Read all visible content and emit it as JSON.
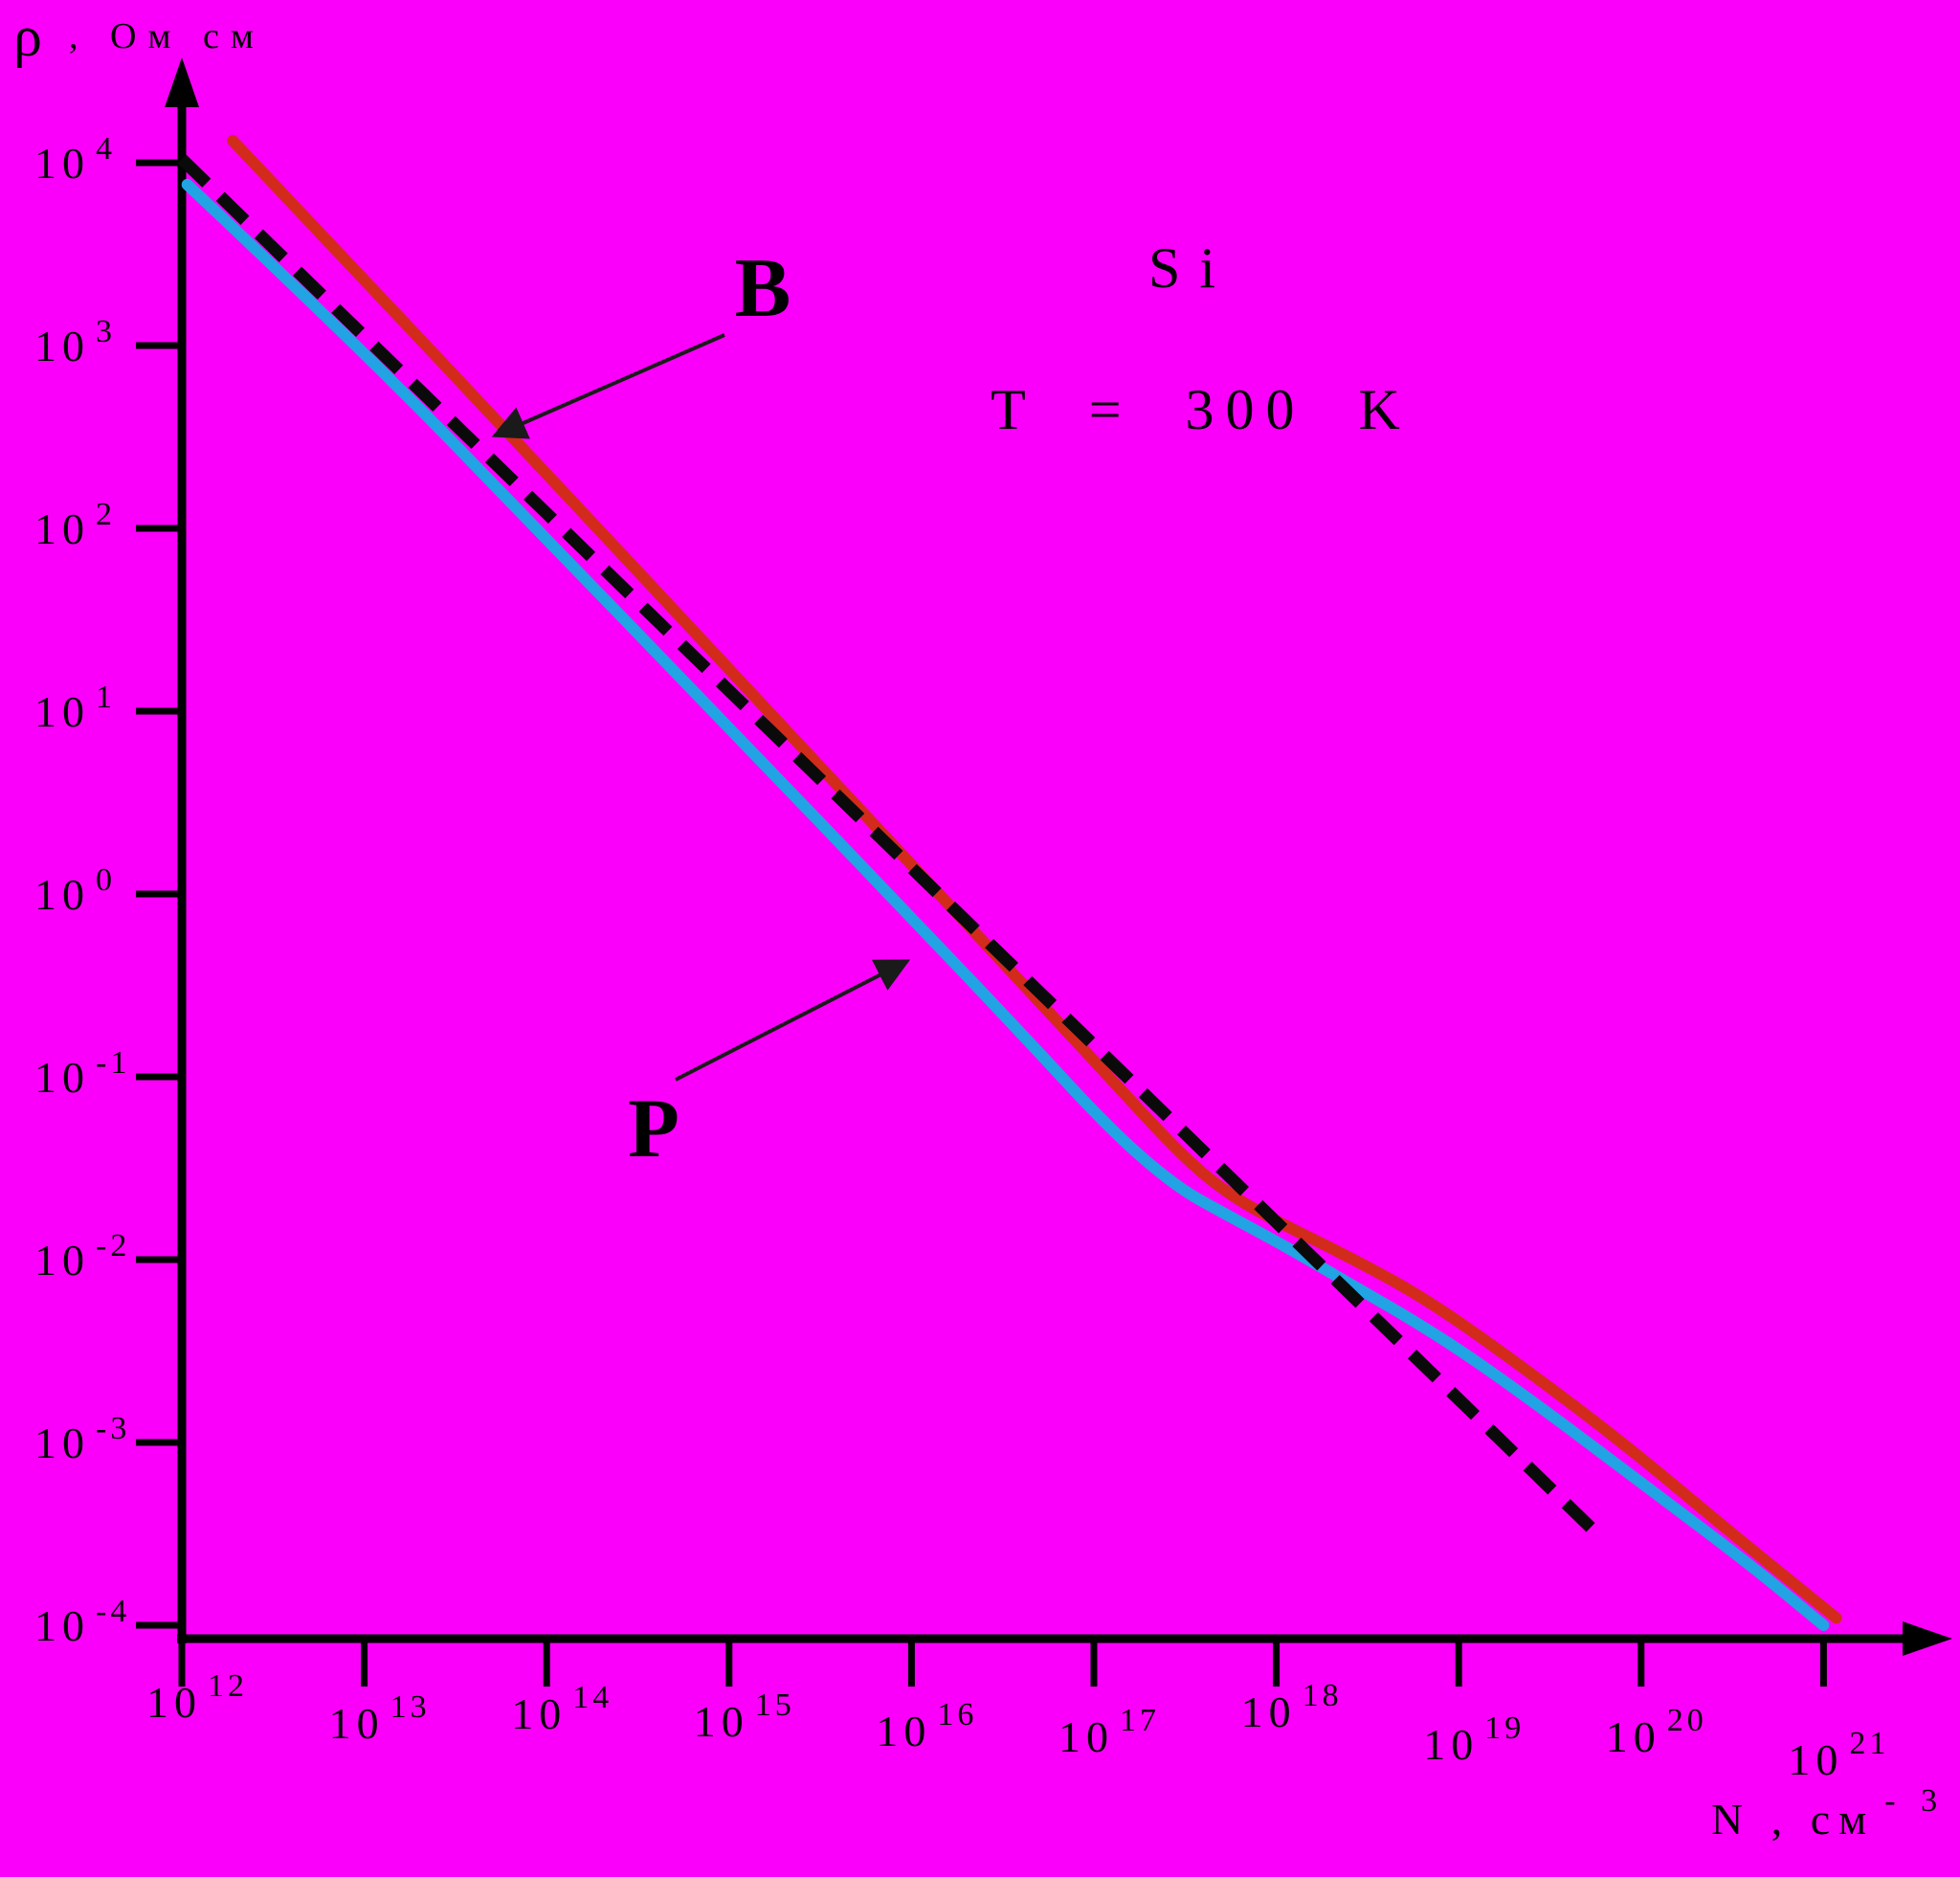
{
  "colors": {
    "background": "#fa00fa",
    "axis": "#000000",
    "boron_curve": "#d22b1c",
    "phosphorus_curve": "#22a3e3",
    "dashed_line": "#0a0a0a",
    "boron_label": "#b52433",
    "phosphorus_label": "#1b87d9",
    "annotation_arrow": "#1a1a1a",
    "text": "#000000"
  },
  "chart_data": {
    "type": "line",
    "title": "Si",
    "subtitle": "T = 300 K",
    "xlabel": "N , см",
    "xlabel_exponent": "- 3",
    "ylabel_symbol": "ρ",
    "ylabel_units": ", Ом см",
    "grid": false,
    "legend": "none (curves annotated with arrows)",
    "xlim_log10": [
      12,
      21
    ],
    "ylim_log10": [
      -4,
      4
    ],
    "x_axis": {
      "scale": "log10",
      "base": "10",
      "tick_exponents": [
        12,
        13,
        14,
        15,
        16,
        17,
        18,
        19,
        20,
        21
      ]
    },
    "y_axis": {
      "scale": "log10",
      "base": "10",
      "tick_exponents": [
        4,
        3,
        2,
        1,
        0,
        -1,
        -2,
        -3,
        -4
      ]
    },
    "series": [
      {
        "name": "B",
        "label": "B",
        "description": "boron-doped Si resistivity vs dopant concentration",
        "style": "solid",
        "color_key": "boron_curve",
        "points_log10": [
          [
            12.28,
            4.12
          ],
          [
            13,
            3.36
          ],
          [
            14,
            2.3
          ],
          [
            15,
            1.23
          ],
          [
            16,
            0.16
          ],
          [
            16.6,
            -0.48
          ],
          [
            17.1,
            -1.02
          ],
          [
            17.5,
            -1.45
          ],
          [
            17.75,
            -1.65
          ],
          [
            18.0,
            -1.79
          ],
          [
            18.35,
            -1.96
          ],
          [
            18.8,
            -2.2
          ],
          [
            19.3,
            -2.55
          ],
          [
            19.9,
            -3.0
          ],
          [
            20.5,
            -3.5
          ],
          [
            21.07,
            -3.96
          ]
        ]
      },
      {
        "name": "P",
        "label": "P",
        "description": "phosphorus-doped Si resistivity vs dopant concentration",
        "style": "solid",
        "color_key": "phosphorus_curve",
        "points_log10": [
          [
            12.03,
            3.88
          ],
          [
            13,
            2.97
          ],
          [
            14,
            1.94
          ],
          [
            15,
            0.91
          ],
          [
            16,
            -0.13
          ],
          [
            16.6,
            -0.76
          ],
          [
            17.1,
            -1.3
          ],
          [
            17.45,
            -1.6
          ],
          [
            17.7,
            -1.74
          ],
          [
            18.0,
            -1.9
          ],
          [
            18.35,
            -2.1
          ],
          [
            18.9,
            -2.42
          ],
          [
            19.4,
            -2.77
          ],
          [
            20.0,
            -3.22
          ],
          [
            20.6,
            -3.67
          ],
          [
            21.0,
            -4.0
          ]
        ]
      },
      {
        "name": "reference",
        "label": "",
        "description": "straight dashed reference line",
        "style": "dashed",
        "color_key": "dashed_line",
        "points_log10": [
          [
            12.0,
            4.02
          ],
          [
            19.78,
            -3.52
          ]
        ]
      }
    ]
  }
}
